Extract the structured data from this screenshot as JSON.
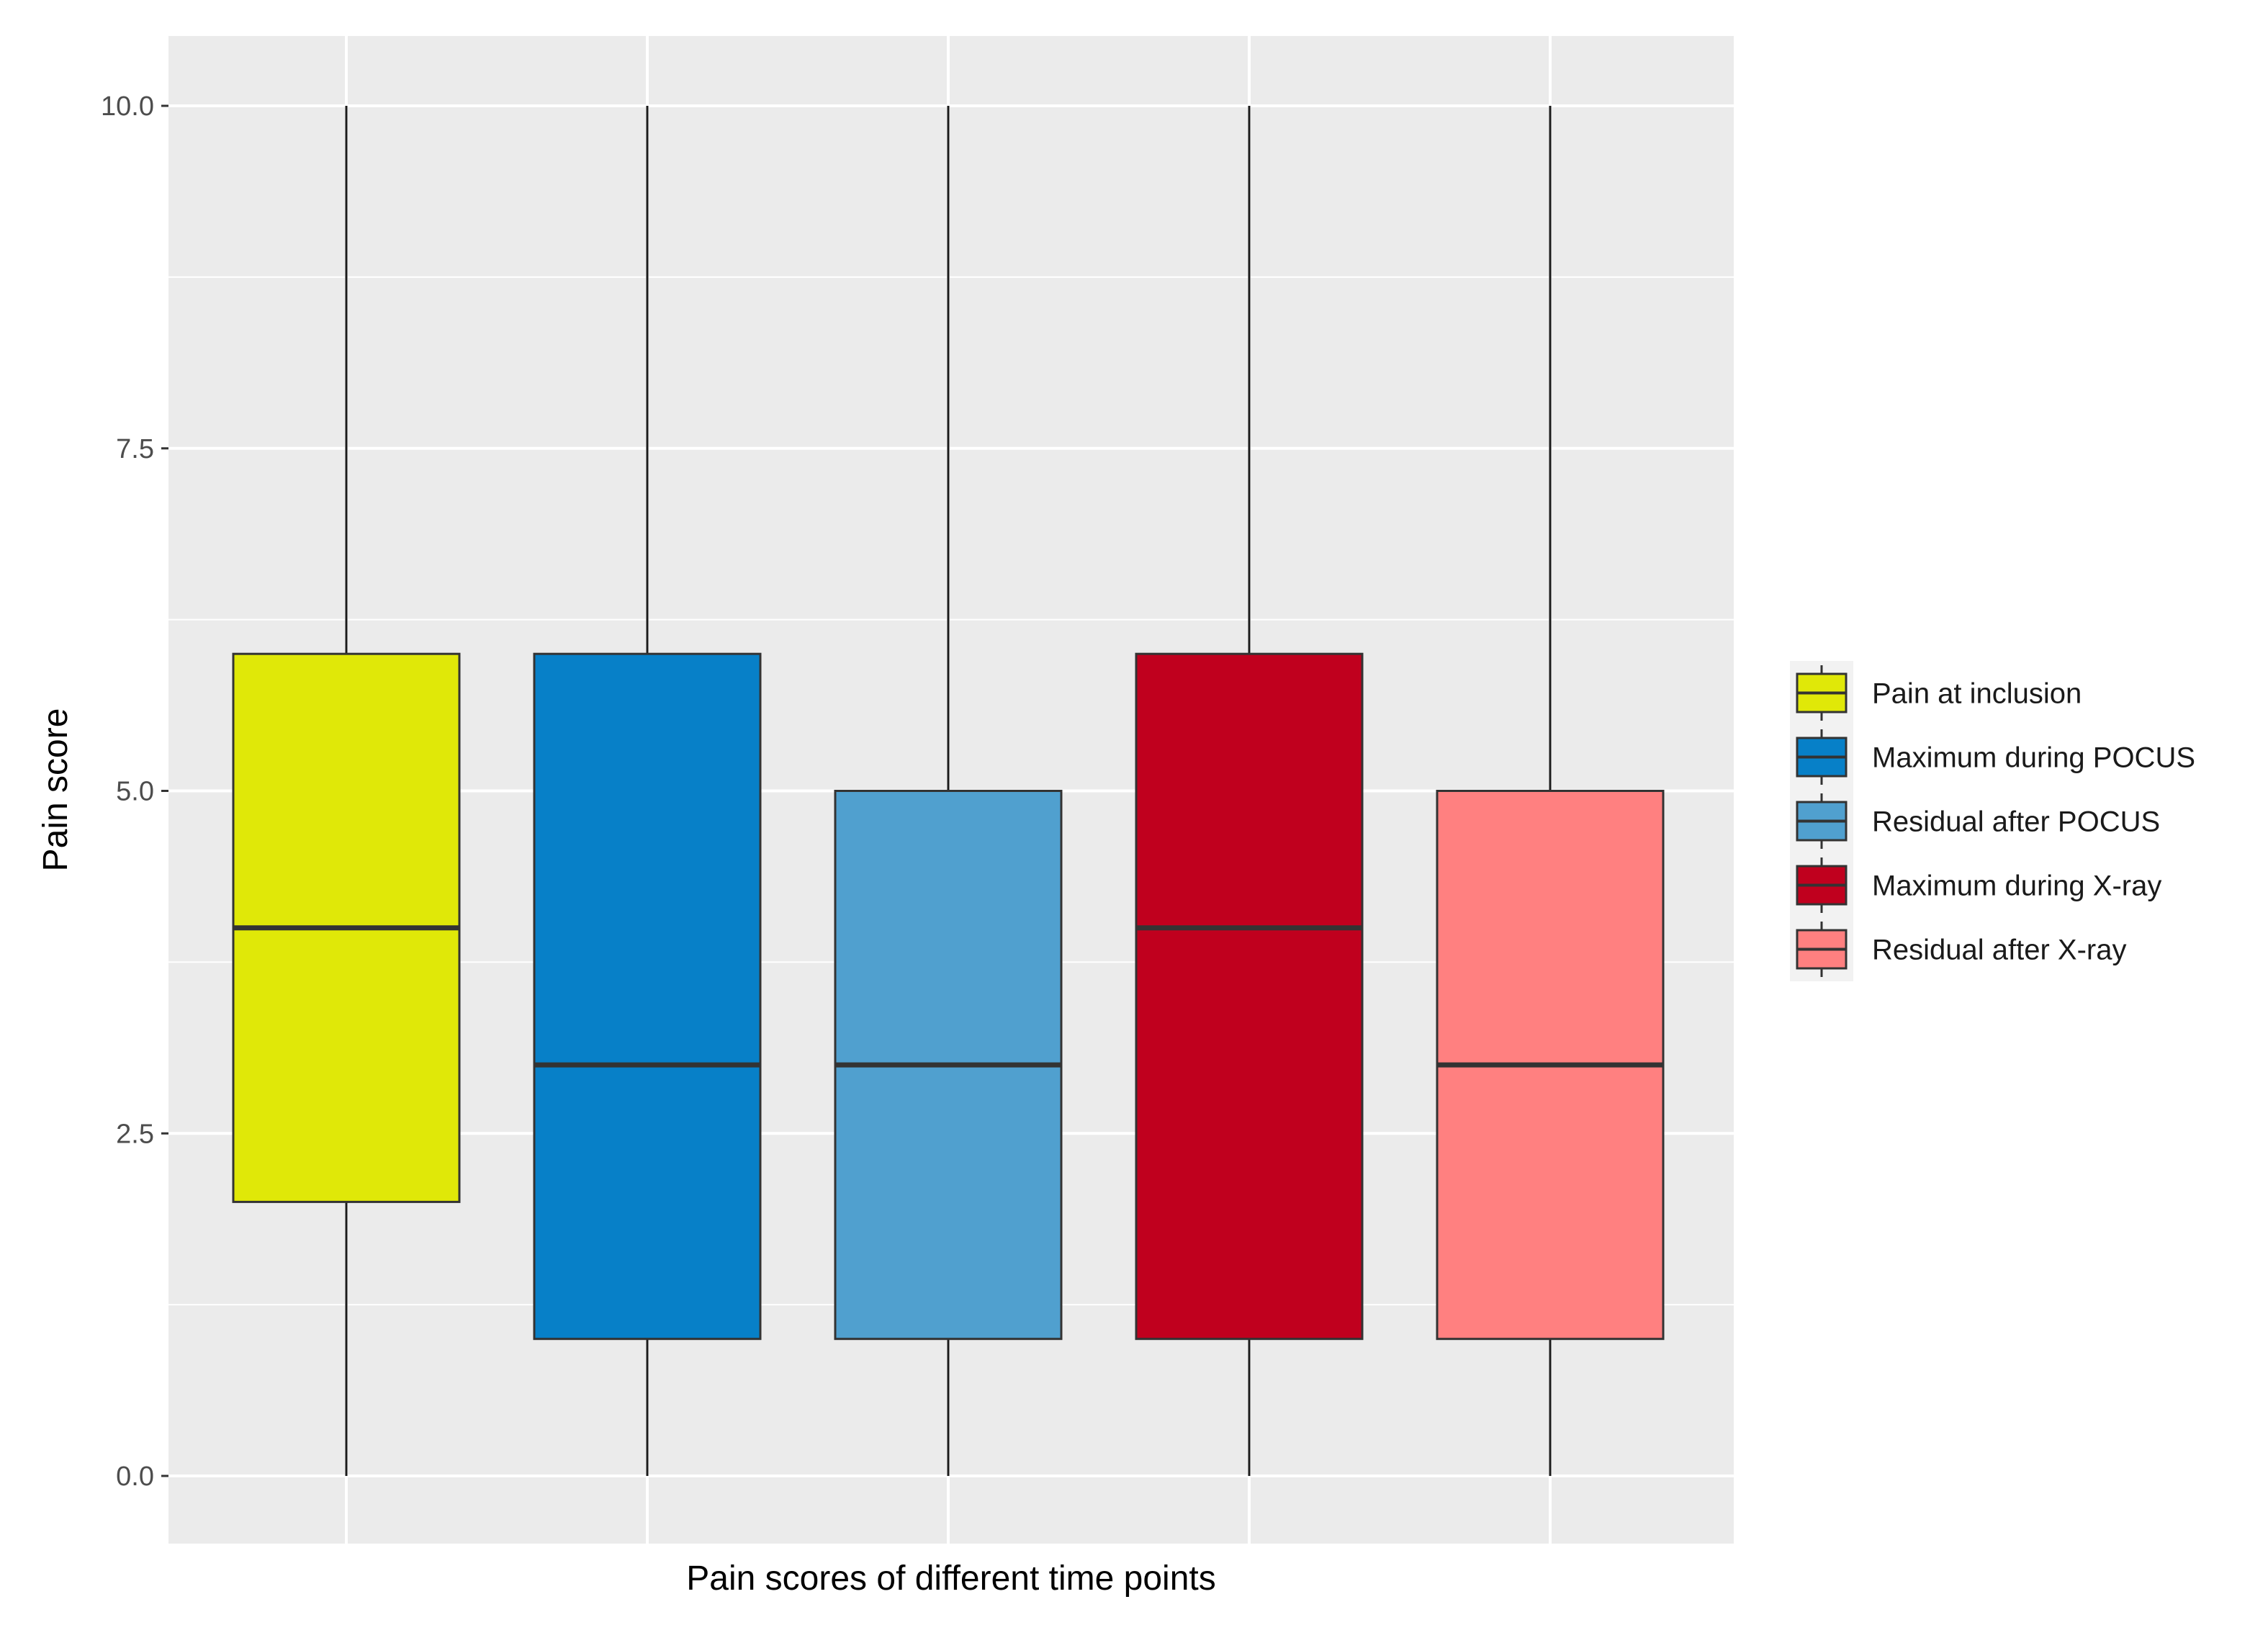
{
  "chart_data": {
    "type": "box",
    "xlabel": "Pain scores of different time points",
    "ylabel": "Pain score",
    "ylim": [
      -0.5,
      10.5
    ],
    "yticks": [
      0,
      2.5,
      5,
      7.5,
      10
    ],
    "ytick_labels": [
      "0.0",
      "2.5",
      "5.0",
      "7.5",
      "10.0"
    ],
    "grid": true,
    "legend_position": "right",
    "series": [
      {
        "name": "Pain at inclusion",
        "min": 0,
        "q1": 2,
        "median": 4,
        "q3": 6,
        "max": 10,
        "color": "#E0E808"
      },
      {
        "name": "Maximum during POCUS",
        "min": 0,
        "q1": 1,
        "median": 3,
        "q3": 6,
        "max": 10,
        "color": "#0780C8"
      },
      {
        "name": "Residual after POCUS",
        "min": 0,
        "q1": 1,
        "median": 3,
        "q3": 5,
        "max": 10,
        "color": "#50A0CF"
      },
      {
        "name": "Maximum during X-ray",
        "min": 0,
        "q1": 1,
        "median": 4,
        "q3": 6,
        "max": 10,
        "color": "#C0001E"
      },
      {
        "name": "Residual after X-ray",
        "min": 0,
        "q1": 1,
        "median": 3,
        "q3": 5,
        "max": 10,
        "color": "#FF8080"
      }
    ]
  }
}
